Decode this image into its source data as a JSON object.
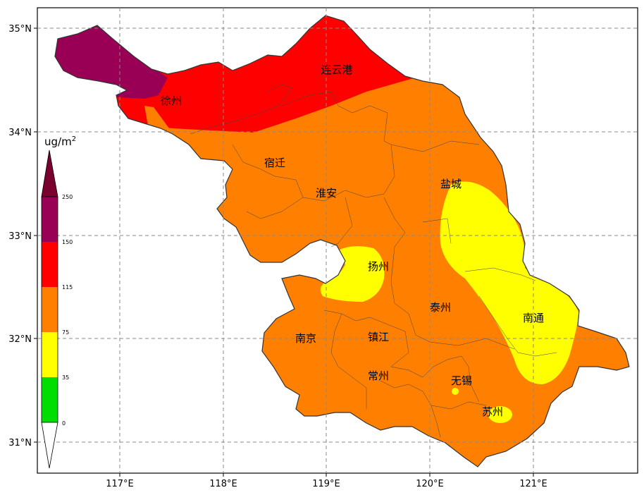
{
  "map": {
    "unit": "ug/m",
    "unit_sup": "2",
    "lon_ticks": [
      "117°E",
      "118°E",
      "119°E",
      "120°E",
      "121°E"
    ],
    "lat_ticks": [
      "35°N",
      "34°N",
      "33°N",
      "32°N",
      "31°N"
    ],
    "colorbar": {
      "levels": [
        "0",
        "35",
        "75",
        "115",
        "150",
        "250"
      ],
      "colors": [
        "#00dd00",
        "#ffff00",
        "#ff7f00",
        "#ff0000",
        "#990055",
        "#7a0030"
      ]
    },
    "cities": [
      {
        "id": "lianyungang",
        "name": "连云港"
      },
      {
        "id": "xuzhou",
        "name": "徐州"
      },
      {
        "id": "suqian",
        "name": "宿迁"
      },
      {
        "id": "huaian",
        "name": "淮安"
      },
      {
        "id": "yancheng",
        "name": "盐城"
      },
      {
        "id": "yangzhou",
        "name": "扬州"
      },
      {
        "id": "taizhou",
        "name": "泰州"
      },
      {
        "id": "nantong",
        "name": "南通"
      },
      {
        "id": "nanjing",
        "name": "南京"
      },
      {
        "id": "zhenjiang",
        "name": "镇江"
      },
      {
        "id": "changzhou",
        "name": "常州"
      },
      {
        "id": "wuxi",
        "name": "无锡"
      },
      {
        "id": "suzhou",
        "name": "苏州"
      }
    ]
  }
}
